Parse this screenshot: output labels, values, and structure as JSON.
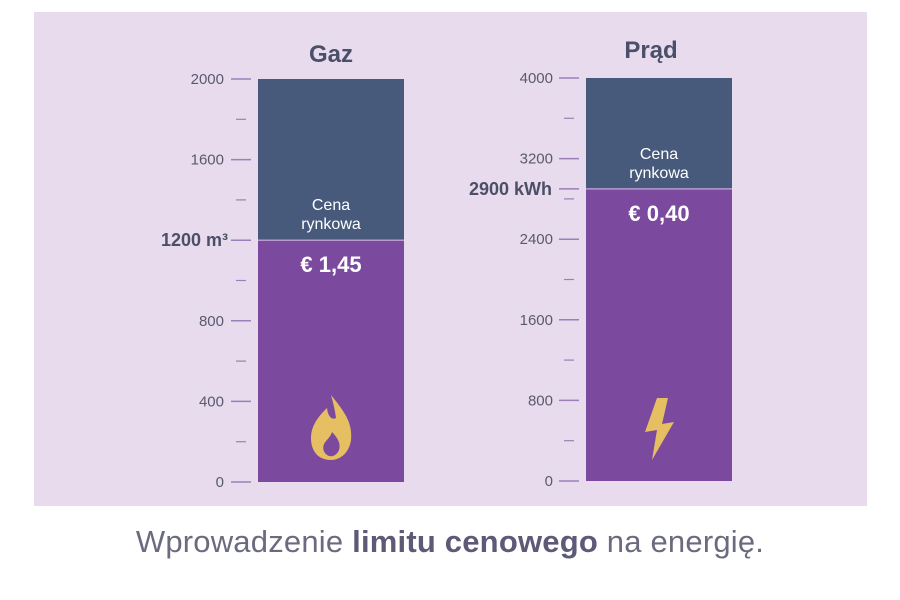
{
  "chart_data": [
    {
      "type": "bar",
      "title": "Gaz",
      "ylim": [
        0,
        2000
      ],
      "ticks": [
        "0",
        "400",
        "800",
        "1600",
        "2000"
      ],
      "tick_values": [
        0,
        400,
        800,
        1600,
        2000
      ],
      "minor_ticks": [
        200,
        600,
        1000,
        1400,
        1800
      ],
      "cap_value": 1200,
      "cap_label": "1200 m³",
      "upper_label": [
        "Cena",
        "rynkowa"
      ],
      "price_label": "€ 1,45",
      "icon": "flame-icon",
      "colors": {
        "upper": "#475a7b",
        "lower": "#7b4a9e",
        "icon": "#e6bf63"
      }
    },
    {
      "type": "bar",
      "title": "Prąd",
      "ylim": [
        0,
        4000
      ],
      "ticks": [
        "0",
        "800",
        "1600",
        "2400",
        "3200",
        "4000"
      ],
      "tick_values": [
        0,
        800,
        1600,
        2400,
        3200,
        4000
      ],
      "minor_ticks": [
        400,
        1200,
        2000,
        2800,
        3600
      ],
      "cap_value": 2900,
      "cap_label": "2900 kWh",
      "upper_label": [
        "Cena",
        "rynkowa"
      ],
      "price_label": "€ 0,40",
      "icon": "lightning-icon",
      "colors": {
        "upper": "#475a7b",
        "lower": "#7b4a9e",
        "icon": "#e6bf63"
      }
    }
  ],
  "caption": {
    "before": "Wprowadzenie ",
    "bold": "limitu cenowego",
    "after": " na energię."
  },
  "colors": {
    "panel": "#e8dbee",
    "axis": "#9a7fb8",
    "text": "#4a4f6a"
  }
}
